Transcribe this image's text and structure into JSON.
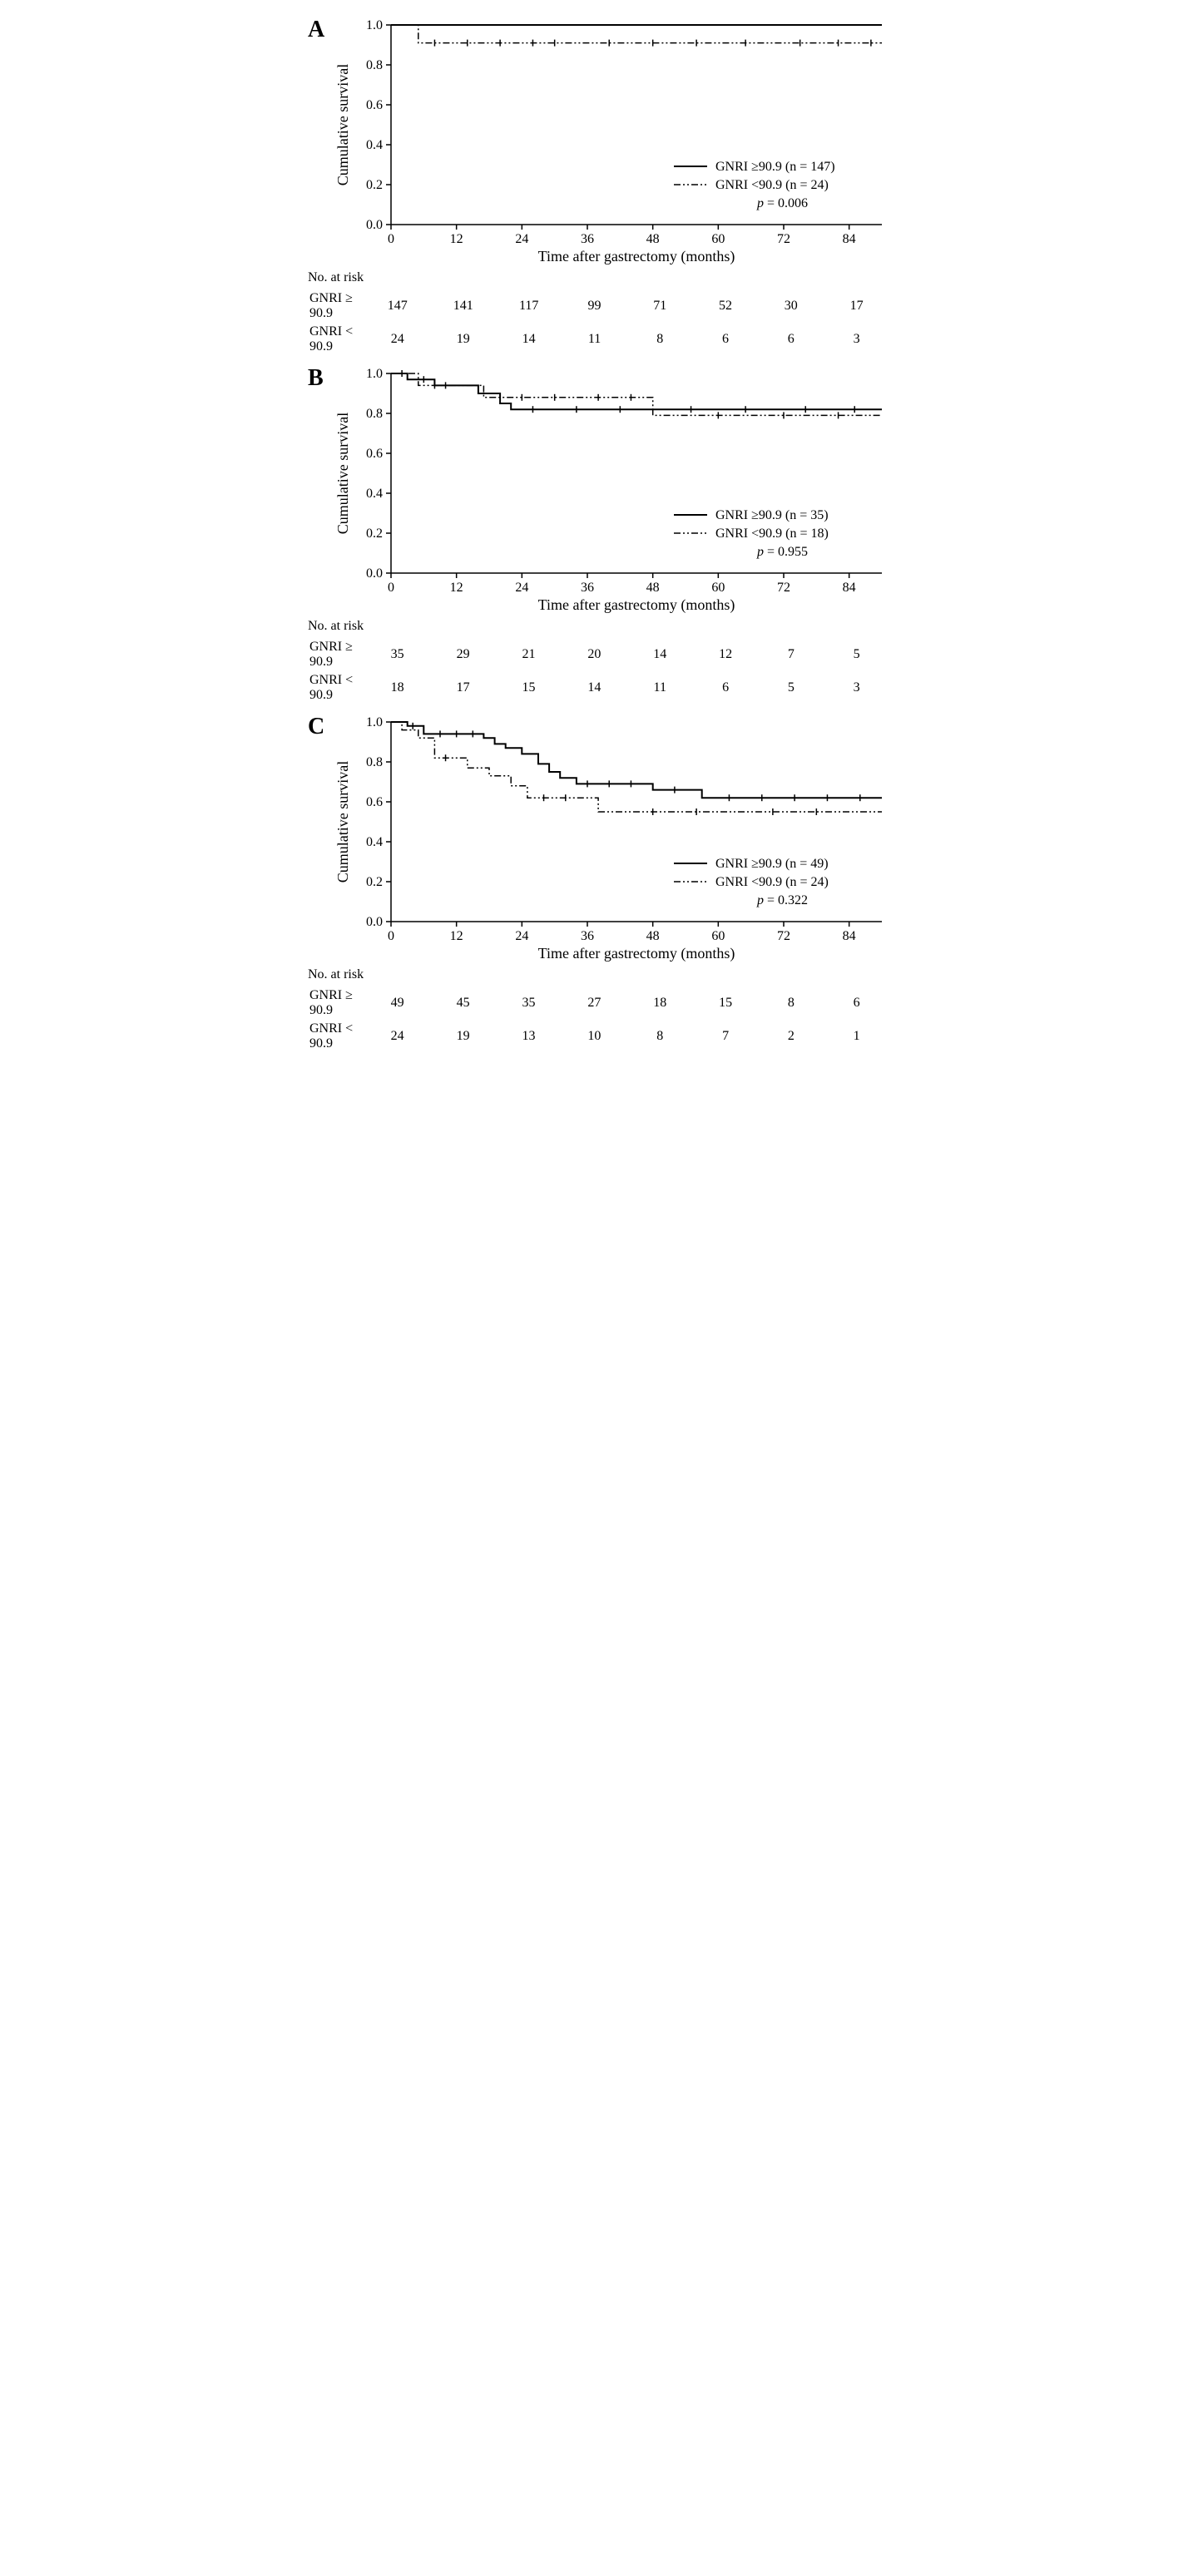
{
  "figure": {
    "background_color": "#ffffff",
    "line_color": "#000000",
    "text_color": "#000000",
    "font_family": "Times New Roman",
    "xlabel": "Time after gastrectomy (months)",
    "ylabel": "Cumulative survival",
    "risk_title": "No. at risk",
    "xticks": [
      0,
      12,
      24,
      36,
      48,
      60,
      72,
      84
    ],
    "yticks": [
      0.0,
      0.2,
      0.4,
      0.6,
      0.8,
      1.0
    ],
    "xmax": 90,
    "ymin": 0.0,
    "ymax": 1.0,
    "axis_fontsize": 18,
    "tick_fontsize": 16,
    "legend_fontsize": 16,
    "panel_label_fontsize": 28,
    "solid_line_width": 2,
    "dashed_line_width": 1.5,
    "dash_pattern": "8,3,2,3,2,3",
    "panels": [
      {
        "id": "A",
        "legend": {
          "solid": "GNRI ≥90.9 (n = 147)",
          "dashed": "GNRI <90.9 (n = 24)",
          "p": "p = 0.006",
          "p_italic": "p"
        },
        "solid_curve": [
          {
            "x": 0,
            "y": 1.0
          },
          {
            "x": 90,
            "y": 1.0
          }
        ],
        "dashed_curve": [
          {
            "x": 0,
            "y": 1.0
          },
          {
            "x": 5,
            "y": 1.0
          },
          {
            "x": 5,
            "y": 0.91
          },
          {
            "x": 90,
            "y": 0.91
          }
        ],
        "censor_marks_solid": [],
        "censor_marks_dashed": [
          8,
          14,
          20,
          26,
          30,
          40,
          48,
          56,
          65,
          75,
          82,
          88
        ],
        "risk": {
          "label_hi": "GNRI ≥ 90.9",
          "label_lo": "GNRI < 90.9",
          "hi": [
            147,
            141,
            117,
            99,
            71,
            52,
            30,
            17
          ],
          "lo": [
            24,
            19,
            14,
            11,
            8,
            6,
            6,
            3
          ]
        }
      },
      {
        "id": "B",
        "legend": {
          "solid": "GNRI ≥90.9 (n = 35)",
          "dashed": "GNRI <90.9 (n = 18)",
          "p": "p = 0.955",
          "p_italic": "p"
        },
        "solid_curve": [
          {
            "x": 0,
            "y": 1.0
          },
          {
            "x": 3,
            "y": 1.0
          },
          {
            "x": 3,
            "y": 0.97
          },
          {
            "x": 8,
            "y": 0.97
          },
          {
            "x": 8,
            "y": 0.94
          },
          {
            "x": 16,
            "y": 0.94
          },
          {
            "x": 16,
            "y": 0.9
          },
          {
            "x": 20,
            "y": 0.9
          },
          {
            "x": 20,
            "y": 0.85
          },
          {
            "x": 22,
            "y": 0.85
          },
          {
            "x": 22,
            "y": 0.82
          },
          {
            "x": 90,
            "y": 0.82
          }
        ],
        "dashed_curve": [
          {
            "x": 0,
            "y": 1.0
          },
          {
            "x": 5,
            "y": 1.0
          },
          {
            "x": 5,
            "y": 0.94
          },
          {
            "x": 17,
            "y": 0.94
          },
          {
            "x": 17,
            "y": 0.88
          },
          {
            "x": 48,
            "y": 0.88
          },
          {
            "x": 48,
            "y": 0.79
          },
          {
            "x": 90,
            "y": 0.79
          }
        ],
        "censor_marks_solid": [
          2,
          6,
          10,
          26,
          34,
          42,
          55,
          65,
          76,
          85
        ],
        "censor_marks_dashed": [
          8,
          24,
          30,
          38,
          44,
          60,
          72,
          82
        ],
        "risk": {
          "label_hi": "GNRI ≥ 90.9",
          "label_lo": "GNRI < 90.9",
          "hi": [
            35,
            29,
            21,
            20,
            14,
            12,
            7,
            5
          ],
          "lo": [
            18,
            17,
            15,
            14,
            11,
            6,
            5,
            3
          ]
        }
      },
      {
        "id": "C",
        "legend": {
          "solid": "GNRI ≥90.9 (n = 49)",
          "dashed": "GNRI <90.9 (n = 24)",
          "p": "p = 0.322",
          "p_italic": "p"
        },
        "solid_curve": [
          {
            "x": 0,
            "y": 1.0
          },
          {
            "x": 3,
            "y": 1.0
          },
          {
            "x": 3,
            "y": 0.98
          },
          {
            "x": 6,
            "y": 0.98
          },
          {
            "x": 6,
            "y": 0.94
          },
          {
            "x": 17,
            "y": 0.94
          },
          {
            "x": 17,
            "y": 0.92
          },
          {
            "x": 19,
            "y": 0.92
          },
          {
            "x": 19,
            "y": 0.89
          },
          {
            "x": 21,
            "y": 0.89
          },
          {
            "x": 21,
            "y": 0.87
          },
          {
            "x": 24,
            "y": 0.87
          },
          {
            "x": 24,
            "y": 0.84
          },
          {
            "x": 27,
            "y": 0.84
          },
          {
            "x": 27,
            "y": 0.79
          },
          {
            "x": 29,
            "y": 0.79
          },
          {
            "x": 29,
            "y": 0.75
          },
          {
            "x": 31,
            "y": 0.75
          },
          {
            "x": 31,
            "y": 0.72
          },
          {
            "x": 34,
            "y": 0.72
          },
          {
            "x": 34,
            "y": 0.69
          },
          {
            "x": 48,
            "y": 0.69
          },
          {
            "x": 48,
            "y": 0.66
          },
          {
            "x": 57,
            "y": 0.66
          },
          {
            "x": 57,
            "y": 0.62
          },
          {
            "x": 90,
            "y": 0.62
          }
        ],
        "dashed_curve": [
          {
            "x": 0,
            "y": 1.0
          },
          {
            "x": 2,
            "y": 1.0
          },
          {
            "x": 2,
            "y": 0.96
          },
          {
            "x": 5,
            "y": 0.96
          },
          {
            "x": 5,
            "y": 0.92
          },
          {
            "x": 8,
            "y": 0.92
          },
          {
            "x": 8,
            "y": 0.82
          },
          {
            "x": 14,
            "y": 0.82
          },
          {
            "x": 14,
            "y": 0.77
          },
          {
            "x": 18,
            "y": 0.77
          },
          {
            "x": 18,
            "y": 0.73
          },
          {
            "x": 22,
            "y": 0.73
          },
          {
            "x": 22,
            "y": 0.68
          },
          {
            "x": 25,
            "y": 0.68
          },
          {
            "x": 25,
            "y": 0.62
          },
          {
            "x": 38,
            "y": 0.62
          },
          {
            "x": 38,
            "y": 0.55
          },
          {
            "x": 90,
            "y": 0.55
          }
        ],
        "censor_marks_solid": [
          4,
          9,
          12,
          15,
          36,
          40,
          44,
          52,
          62,
          68,
          74,
          80,
          86
        ],
        "censor_marks_dashed": [
          10,
          28,
          32,
          48,
          56,
          70,
          78
        ],
        "risk": {
          "label_hi": "GNRI ≥ 90.9",
          "label_lo": "GNRI < 90.9",
          "hi": [
            49,
            45,
            35,
            27,
            18,
            15,
            8,
            6
          ],
          "lo": [
            24,
            19,
            13,
            10,
            8,
            7,
            2,
            1
          ]
        }
      }
    ]
  }
}
